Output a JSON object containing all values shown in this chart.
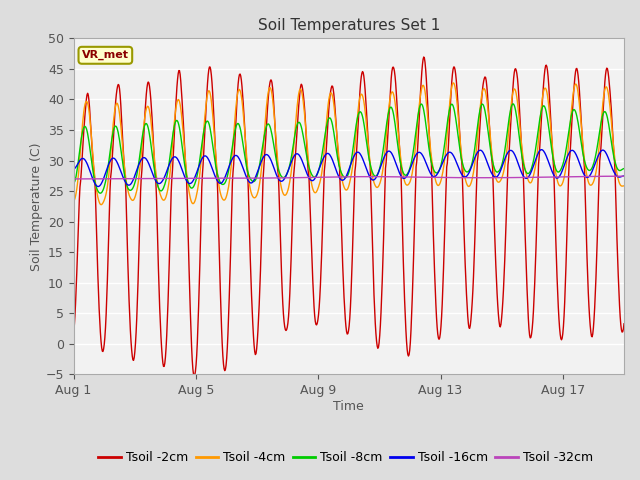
{
  "title": "Soil Temperatures Set 1",
  "xlabel": "Time",
  "ylabel": "Soil Temperature (C)",
  "ylim": [
    -5,
    50
  ],
  "yticks": [
    -5,
    0,
    5,
    10,
    15,
    20,
    25,
    30,
    35,
    40,
    45,
    50
  ],
  "xtick_labels": [
    "Aug 1",
    "Aug 5",
    "Aug 9",
    "Aug 13",
    "Aug 17"
  ],
  "xtick_positions": [
    0,
    4,
    8,
    12,
    16
  ],
  "n_days": 18,
  "colors": {
    "tsoil_2cm": "#CC0000",
    "tsoil_4cm": "#FF9900",
    "tsoil_8cm": "#00CC00",
    "tsoil_16cm": "#0000EE",
    "tsoil_32cm": "#BB44BB"
  },
  "legend_labels": [
    "Tsoil -2cm",
    "Tsoil -4cm",
    "Tsoil -8cm",
    "Tsoil -16cm",
    "Tsoil -32cm"
  ],
  "vr_met_label": "VR_met",
  "fig_bg_color": "#DDDDDD",
  "plot_bg_color": "#F2F2F2",
  "grid_color": "#FFFFFF",
  "title_fontsize": 11,
  "axis_label_fontsize": 9,
  "tick_fontsize": 9,
  "legend_fontsize": 9,
  "linewidth": 1.0
}
